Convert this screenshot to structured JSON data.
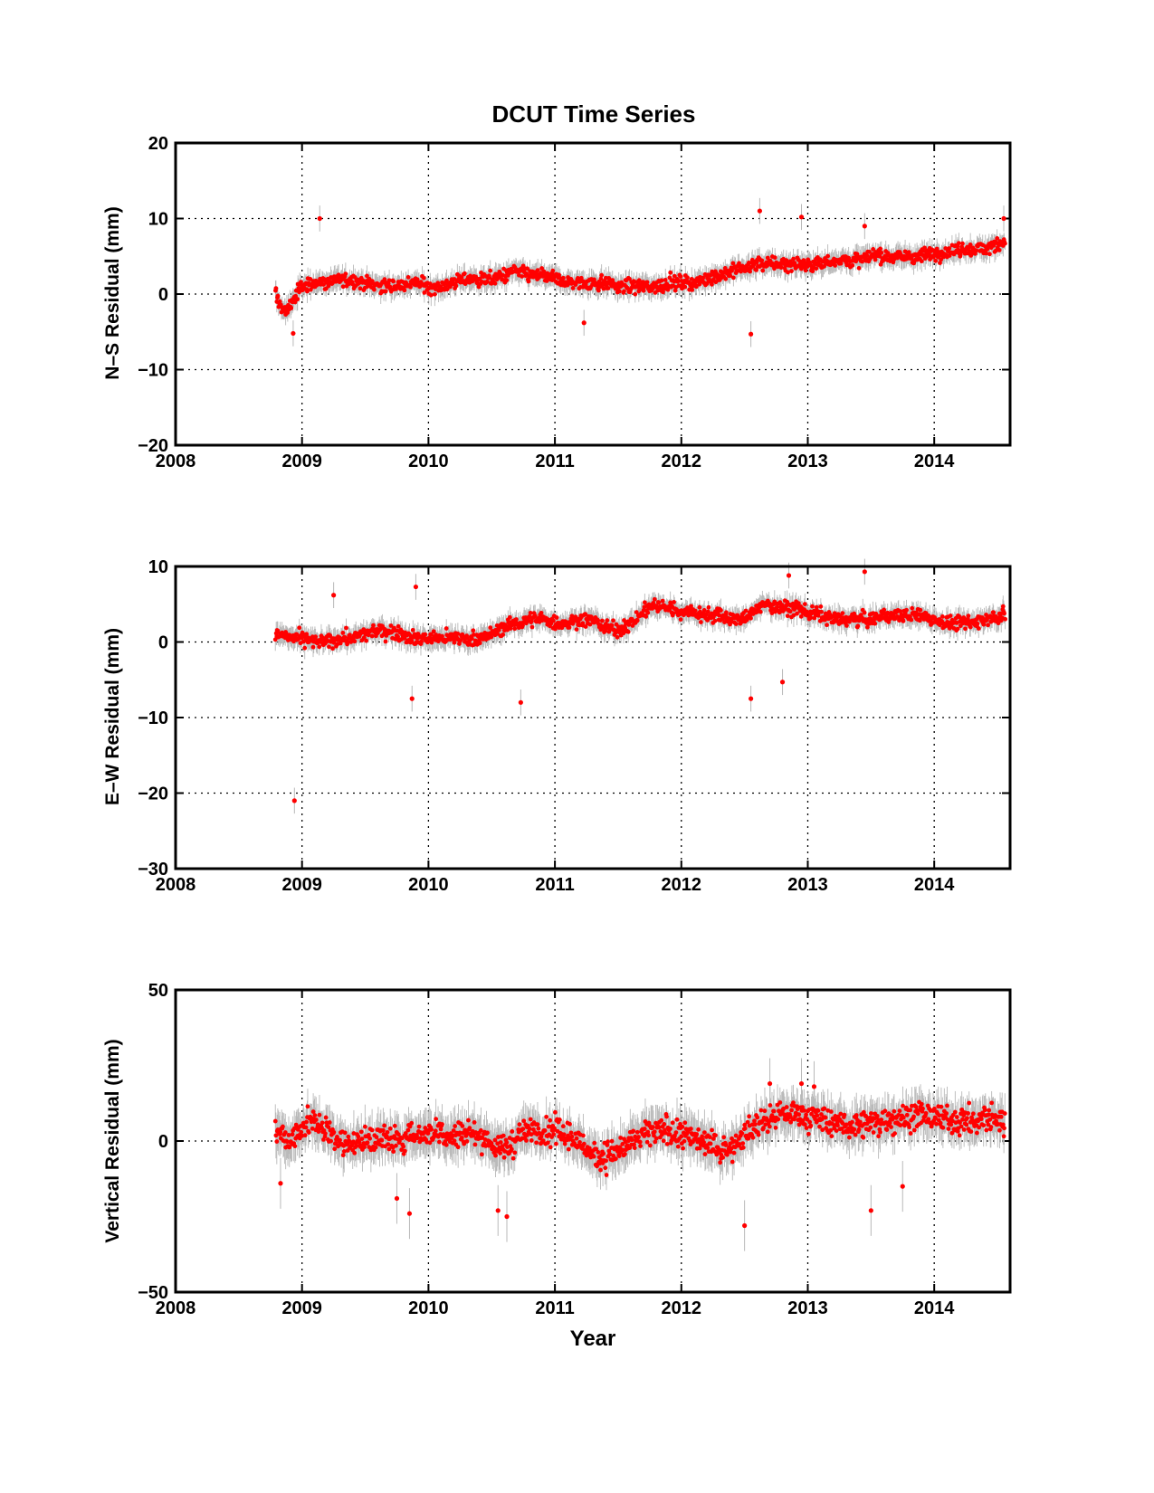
{
  "colors": {
    "point": "#ff0000",
    "errorbar": "#b8b8b8",
    "axis": "#000000"
  },
  "chart_data": [
    {
      "type": "scatter",
      "title": "DCUT Time Series",
      "ylabel": "N–S Residual (mm)",
      "xlabel": "",
      "xlim": [
        2008,
        2014.6
      ],
      "ylim": [
        -20,
        20
      ],
      "xticks": [
        "2008",
        "2009",
        "2010",
        "2011",
        "2012",
        "2013",
        "2014"
      ],
      "yticks": [
        "−20",
        "−10",
        "0",
        "10",
        "20"
      ],
      "grid": true,
      "error_bars": true,
      "series": [
        {
          "x": [
            2008.79,
            2008.83,
            2008.87,
            2008.92,
            2009.0,
            2009.1,
            2009.2,
            2009.3,
            2009.4,
            2009.5,
            2009.6,
            2009.7,
            2009.8,
            2009.9,
            2010.0,
            2010.1,
            2010.2,
            2010.3,
            2010.4,
            2010.5,
            2010.6,
            2010.7,
            2010.8,
            2010.9,
            2011.0,
            2011.1,
            2011.2,
            2011.3,
            2011.4,
            2011.5,
            2011.6,
            2011.7,
            2011.8,
            2011.9,
            2012.0,
            2012.1,
            2012.2,
            2012.3,
            2012.4,
            2012.5,
            2012.6,
            2012.7,
            2012.8,
            2012.9,
            2013.0,
            2013.1,
            2013.2,
            2013.3,
            2013.4,
            2013.5,
            2013.6,
            2013.7,
            2013.8,
            2013.9,
            2014.0,
            2014.1,
            2014.2,
            2014.3,
            2014.4,
            2014.5,
            2014.56
          ],
          "y": [
            0.0,
            -1.5,
            -2.5,
            -1.0,
            1.0,
            1.5,
            1.5,
            2.0,
            1.8,
            1.5,
            1.2,
            1.0,
            1.2,
            1.5,
            1.0,
            1.0,
            1.5,
            2.0,
            2.0,
            2.0,
            2.5,
            3.0,
            2.5,
            2.5,
            2.0,
            1.5,
            1.5,
            1.5,
            1.5,
            1.0,
            1.0,
            1.0,
            1.0,
            1.5,
            1.5,
            1.5,
            2.0,
            2.5,
            3.0,
            3.5,
            4.0,
            4.0,
            4.0,
            4.0,
            4.0,
            4.0,
            4.5,
            4.5,
            4.5,
            5.0,
            5.0,
            5.0,
            5.0,
            5.0,
            5.5,
            5.5,
            6.0,
            6.0,
            6.0,
            6.5,
            7.0
          ]
        }
      ],
      "outliers": [
        [
          2009.14,
          10.0
        ],
        [
          2008.93,
          -5.2
        ],
        [
          2011.23,
          -3.8
        ],
        [
          2012.55,
          -5.3
        ],
        [
          2012.62,
          11.0
        ],
        [
          2012.95,
          10.2
        ],
        [
          2013.45,
          9.0
        ],
        [
          2014.55,
          10.0
        ]
      ]
    },
    {
      "type": "scatter",
      "ylabel": "E–W Residual (mm)",
      "xlabel": "",
      "xlim": [
        2008,
        2014.6
      ],
      "ylim": [
        -30,
        10
      ],
      "xticks": [
        "2008",
        "2009",
        "2010",
        "2011",
        "2012",
        "2013",
        "2014"
      ],
      "yticks": [
        "−30",
        "−20",
        "−10",
        "0",
        "10"
      ],
      "grid": true,
      "error_bars": true,
      "series": [
        {
          "x": [
            2008.79,
            2008.9,
            2009.0,
            2009.1,
            2009.2,
            2009.3,
            2009.4,
            2009.5,
            2009.6,
            2009.7,
            2009.8,
            2009.9,
            2010.0,
            2010.1,
            2010.2,
            2010.3,
            2010.4,
            2010.5,
            2010.6,
            2010.7,
            2010.8,
            2010.9,
            2011.0,
            2011.1,
            2011.2,
            2011.3,
            2011.4,
            2011.5,
            2011.6,
            2011.7,
            2011.8,
            2011.9,
            2012.0,
            2012.1,
            2012.2,
            2012.3,
            2012.4,
            2012.5,
            2012.6,
            2012.7,
            2012.8,
            2012.9,
            2013.0,
            2013.1,
            2013.2,
            2013.3,
            2013.4,
            2013.5,
            2013.6,
            2013.7,
            2013.8,
            2013.9,
            2014.0,
            2014.1,
            2014.2,
            2014.3,
            2014.4,
            2014.5,
            2014.56
          ],
          "y": [
            1.0,
            0.5,
            0.5,
            0.0,
            0.0,
            0.5,
            0.5,
            1.0,
            1.5,
            1.5,
            1.0,
            0.5,
            0.5,
            0.5,
            0.5,
            0.5,
            0.5,
            1.0,
            2.0,
            2.5,
            3.0,
            3.0,
            2.5,
            2.5,
            3.0,
            3.0,
            2.0,
            1.5,
            2.5,
            4.0,
            5.0,
            4.5,
            4.0,
            4.0,
            3.5,
            3.5,
            3.0,
            3.0,
            4.5,
            5.0,
            4.5,
            4.5,
            4.0,
            3.5,
            3.0,
            3.0,
            3.0,
            3.0,
            3.5,
            3.5,
            3.5,
            3.5,
            3.0,
            2.5,
            2.5,
            2.5,
            3.0,
            3.5,
            3.5
          ]
        }
      ],
      "outliers": [
        [
          2008.94,
          -21.0
        ],
        [
          2009.87,
          -7.5
        ],
        [
          2010.73,
          -8.0
        ],
        [
          2012.55,
          -7.5
        ],
        [
          2012.8,
          -5.3
        ],
        [
          2009.25,
          6.2
        ],
        [
          2009.9,
          7.3
        ],
        [
          2013.45,
          9.3
        ],
        [
          2012.85,
          8.8
        ]
      ]
    },
    {
      "type": "scatter",
      "ylabel": "Vertical Residual (mm)",
      "xlabel": "Year",
      "xlim": [
        2008,
        2014.6
      ],
      "ylim": [
        -50,
        50
      ],
      "xticks": [
        "2008",
        "2009",
        "2010",
        "2011",
        "2012",
        "2013",
        "2014"
      ],
      "yticks": [
        "−50",
        "0",
        "50"
      ],
      "grid": true,
      "error_bars": true,
      "series": [
        {
          "x": [
            2008.79,
            2008.9,
            2009.0,
            2009.1,
            2009.2,
            2009.3,
            2009.4,
            2009.5,
            2009.6,
            2009.7,
            2009.8,
            2009.9,
            2010.0,
            2010.1,
            2010.2,
            2010.3,
            2010.4,
            2010.5,
            2010.6,
            2010.7,
            2010.8,
            2010.9,
            2011.0,
            2011.1,
            2011.2,
            2011.3,
            2011.4,
            2011.5,
            2011.6,
            2011.7,
            2011.8,
            2011.9,
            2012.0,
            2012.1,
            2012.2,
            2012.3,
            2012.4,
            2012.5,
            2012.6,
            2012.7,
            2012.8,
            2012.9,
            2013.0,
            2013.1,
            2013.2,
            2013.3,
            2013.4,
            2013.5,
            2013.6,
            2013.7,
            2013.8,
            2013.9,
            2014.0,
            2014.1,
            2014.2,
            2014.3,
            2014.4,
            2014.5,
            2014.56
          ],
          "y": [
            4,
            0,
            5,
            6,
            3,
            0,
            -1,
            0,
            1,
            0,
            1,
            2,
            3,
            3,
            2,
            3,
            2,
            -1,
            -3,
            1,
            4,
            3,
            3,
            2,
            -1,
            -4,
            -5,
            -3,
            -1,
            2,
            3,
            3,
            2,
            1,
            0,
            -3,
            -2,
            2,
            5,
            8,
            9,
            9,
            8,
            7,
            6,
            5,
            5,
            6,
            7,
            7,
            8,
            8,
            8,
            7,
            7,
            6,
            7,
            7,
            6
          ],
          "spread": 7
        }
      ],
      "outliers": [
        [
          2008.83,
          -14.0
        ],
        [
          2009.75,
          -19.0
        ],
        [
          2009.85,
          -24.0
        ],
        [
          2010.55,
          -23.0
        ],
        [
          2010.62,
          -25.0
        ],
        [
          2012.5,
          -28.0
        ],
        [
          2013.5,
          -23.0
        ],
        [
          2013.75,
          -15.0
        ],
        [
          2012.7,
          19.0
        ],
        [
          2012.95,
          19.0
        ],
        [
          2013.05,
          18.0
        ]
      ]
    }
  ]
}
